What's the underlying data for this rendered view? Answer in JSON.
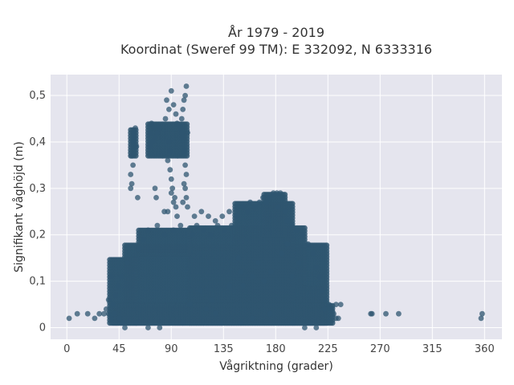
{
  "chart_data": {
    "type": "scatter",
    "title_line1": "År 1979 - 2019",
    "title_line2": "Koordinat (Sweref 99 TM): E 332092, N 6333316",
    "xlabel": "Vågriktning (grader)",
    "ylabel": "Signifikant våghöjd (m)",
    "xlim": [
      -14,
      375
    ],
    "ylim": [
      -0.025,
      0.545
    ],
    "xticks": [
      0,
      45,
      90,
      135,
      180,
      225,
      270,
      315,
      360
    ],
    "xtick_labels": [
      "0",
      "45",
      "90",
      "135",
      "180",
      "225",
      "270",
      "315",
      "360"
    ],
    "yticks": [
      0,
      0.1,
      0.2,
      0.3,
      0.4,
      0.5
    ],
    "ytick_labels": [
      "0",
      "0,1",
      "0,2",
      "0,3",
      "0,4",
      "0,5"
    ],
    "grid": true,
    "marker_color": "#2f5670",
    "background_color": "#e5e5ee",
    "points": [
      [
        2,
        0.02
      ],
      [
        9,
        0.03
      ],
      [
        18,
        0.03
      ],
      [
        24,
        0.02
      ],
      [
        28,
        0.03
      ],
      [
        32,
        0.03
      ],
      [
        36,
        0.03
      ],
      [
        38,
        0.02
      ],
      [
        41,
        0.03
      ],
      [
        45,
        0.02
      ],
      [
        48,
        0.01
      ],
      [
        55,
        0.3
      ],
      [
        56,
        0.31
      ],
      [
        57,
        0.4
      ],
      [
        58,
        0.42
      ],
      [
        59,
        0.43
      ],
      [
        60,
        0.39
      ],
      [
        57,
        0.35
      ],
      [
        55,
        0.33
      ],
      [
        56,
        0.37
      ],
      [
        61,
        0.28
      ],
      [
        58,
        0.41
      ],
      [
        72,
        0.42
      ],
      [
        73,
        0.44
      ],
      [
        74,
        0.4
      ],
      [
        75,
        0.43
      ],
      [
        76,
        0.41
      ],
      [
        72,
        0.39
      ],
      [
        77,
        0.28
      ],
      [
        76,
        0.3
      ],
      [
        78,
        0.42
      ],
      [
        80,
        0.43
      ],
      [
        85,
        0.45
      ],
      [
        86,
        0.49
      ],
      [
        88,
        0.47
      ],
      [
        90,
        0.51
      ],
      [
        92,
        0.48
      ],
      [
        94,
        0.46
      ],
      [
        95,
        0.44
      ],
      [
        88,
        0.4
      ],
      [
        89,
        0.38
      ],
      [
        87,
        0.36
      ],
      [
        89,
        0.34
      ],
      [
        90,
        0.32
      ],
      [
        91,
        0.3
      ],
      [
        93,
        0.28
      ],
      [
        94,
        0.26
      ],
      [
        92,
        0.27
      ],
      [
        95,
        0.24
      ],
      [
        87,
        0.25
      ],
      [
        84,
        0.25
      ],
      [
        90,
        0.29
      ],
      [
        98,
        0.43
      ],
      [
        99,
        0.45
      ],
      [
        100,
        0.47
      ],
      [
        101,
        0.49
      ],
      [
        102,
        0.5
      ],
      [
        103,
        0.52
      ],
      [
        100,
        0.41
      ],
      [
        101,
        0.38
      ],
      [
        102,
        0.35
      ],
      [
        103,
        0.33
      ],
      [
        101,
        0.31
      ],
      [
        102,
        0.3
      ],
      [
        103,
        0.28
      ],
      [
        100,
        0.27
      ],
      [
        104,
        0.26
      ],
      [
        99,
        0.42
      ],
      [
        104,
        0.42
      ],
      [
        110,
        0.24
      ],
      [
        116,
        0.25
      ],
      [
        122,
        0.24
      ],
      [
        128,
        0.23
      ],
      [
        134,
        0.24
      ],
      [
        140,
        0.25
      ],
      [
        146,
        0.24
      ],
      [
        152,
        0.26
      ],
      [
        156,
        0.25
      ],
      [
        158,
        0.27
      ],
      [
        162,
        0.26
      ],
      [
        166,
        0.27
      ],
      [
        169,
        0.28
      ],
      [
        172,
        0.27
      ],
      [
        175,
        0.28
      ],
      [
        178,
        0.29
      ],
      [
        181,
        0.29
      ],
      [
        184,
        0.29
      ],
      [
        186,
        0.28
      ],
      [
        182,
        0.26
      ],
      [
        188,
        0.25
      ],
      [
        190,
        0.23
      ],
      [
        194,
        0.22
      ],
      [
        198,
        0.21
      ],
      [
        203,
        0.2
      ],
      [
        208,
        0.18
      ],
      [
        212,
        0.16
      ],
      [
        215,
        0.13
      ],
      [
        218,
        0.11
      ],
      [
        220,
        0.08
      ],
      [
        223,
        0.06
      ],
      [
        226,
        0.05
      ],
      [
        228,
        0.04
      ],
      [
        230,
        0.03
      ],
      [
        232,
        0.02
      ],
      [
        234,
        0.02
      ],
      [
        236,
        0.05
      ],
      [
        232,
        0.05
      ],
      [
        222,
        0.04
      ],
      [
        120,
        0.04
      ],
      [
        128,
        0.03
      ],
      [
        133,
        0.01
      ],
      [
        150,
        0.01
      ],
      [
        160,
        0.02
      ],
      [
        175,
        0.03
      ],
      [
        195,
        0.01
      ],
      [
        205,
        0.0
      ],
      [
        210,
        0.01
      ],
      [
        215,
        0.0
      ],
      [
        70,
        0.0
      ],
      [
        80,
        0.0
      ],
      [
        100,
        0.01
      ],
      [
        60,
        0.01
      ],
      [
        50,
        0.0
      ],
      [
        106,
        0.05
      ],
      [
        115,
        0.08
      ],
      [
        125,
        0.06
      ],
      [
        140,
        0.09
      ],
      [
        150,
        0.12
      ],
      [
        148,
        0.15
      ],
      [
        152,
        0.09
      ],
      [
        160,
        0.11
      ],
      [
        165,
        0.14
      ],
      [
        170,
        0.1
      ],
      [
        176,
        0.12
      ],
      [
        185,
        0.16
      ],
      [
        190,
        0.18
      ],
      [
        200,
        0.14
      ],
      [
        194,
        0.11
      ],
      [
        108,
        0.2
      ],
      [
        112,
        0.22
      ],
      [
        118,
        0.21
      ],
      [
        124,
        0.2
      ],
      [
        130,
        0.22
      ],
      [
        136,
        0.21
      ],
      [
        142,
        0.22
      ],
      [
        66,
        0.19
      ],
      [
        70,
        0.21
      ],
      [
        78,
        0.22
      ],
      [
        84,
        0.2
      ],
      [
        92,
        0.21
      ],
      [
        98,
        0.22
      ],
      [
        62,
        0.17
      ],
      [
        52,
        0.14
      ],
      [
        47,
        0.11
      ],
      [
        44,
        0.09
      ],
      [
        42,
        0.07
      ],
      [
        40,
        0.05
      ],
      [
        38,
        0.11
      ],
      [
        36,
        0.06
      ],
      [
        34,
        0.04
      ],
      [
        262,
        0.03
      ],
      [
        263,
        0.03
      ],
      [
        275,
        0.03
      ],
      [
        286,
        0.03
      ],
      [
        357,
        0.02
      ],
      [
        358,
        0.03
      ]
    ],
    "regions": [
      {
        "x": [
          50,
          225
        ],
        "y": [
          0.01,
          0.18
        ]
      },
      {
        "x": [
          106,
          205
        ],
        "y": [
          0.01,
          0.22
        ]
      },
      {
        "x": [
          145,
          195
        ],
        "y": [
          0.05,
          0.27
        ]
      },
      {
        "x": [
          170,
          188
        ],
        "y": [
          0.2,
          0.29
        ]
      },
      {
        "x": [
          37,
          60
        ],
        "y": [
          0.01,
          0.15
        ]
      },
      {
        "x": [
          62,
          106
        ],
        "y": [
          0.16,
          0.21
        ]
      },
      {
        "x": [
          70,
          82
        ],
        "y": [
          0.37,
          0.44
        ]
      },
      {
        "x": [
          83,
          95
        ],
        "y": [
          0.37,
          0.44
        ]
      },
      {
        "x": [
          96,
          104
        ],
        "y": [
          0.37,
          0.44
        ]
      },
      {
        "x": [
          55,
          60
        ],
        "y": [
          0.37,
          0.43
        ]
      },
      {
        "x": [
          205,
          222
        ],
        "y": [
          0.01,
          0.09
        ]
      },
      {
        "x": [
          40,
          230
        ],
        "y": [
          0.01,
          0.05
        ]
      }
    ]
  }
}
